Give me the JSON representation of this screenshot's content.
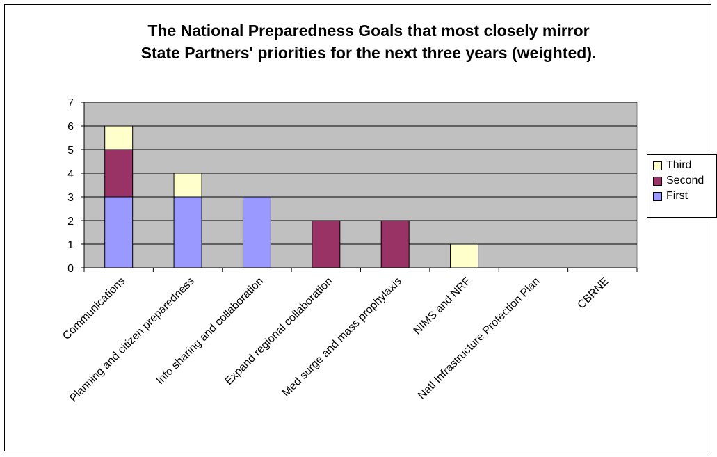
{
  "chart_data": {
    "type": "bar",
    "stacked": true,
    "title_lines": [
      "The National Preparedness Goals that most closely mirror",
      "State Partners' priorities for the next three years (weighted)."
    ],
    "xlabel": "",
    "ylabel": "",
    "ylim": [
      0,
      7
    ],
    "yticks": [
      "0",
      "1",
      "2",
      "3",
      "4",
      "5",
      "6",
      "7"
    ],
    "grid": true,
    "legend_position": "right",
    "categories": [
      "Communications",
      "Planning and citizen preparedness",
      "Info sharing and collaboration",
      "Expand regional collaboration",
      "Med surge and mass prophylaxis",
      "NIMS and NRF",
      "Natl Infrastructure Protection Plan",
      "CBRNE"
    ],
    "series": [
      {
        "name": "First",
        "color": "#9999ff",
        "values": [
          3,
          3,
          3,
          0,
          0,
          0,
          0,
          0
        ]
      },
      {
        "name": "Second",
        "color": "#993366",
        "values": [
          2,
          0,
          0,
          2,
          2,
          0,
          0,
          0
        ]
      },
      {
        "name": "Third",
        "color": "#ffffcc",
        "values": [
          1,
          1,
          0,
          0,
          0,
          1,
          0,
          0
        ]
      }
    ],
    "legend_order": [
      "Third",
      "Second",
      "First"
    ],
    "plot_background": "#c0c0c0"
  }
}
